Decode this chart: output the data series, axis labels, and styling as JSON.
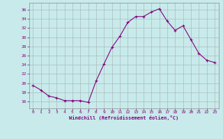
{
  "x": [
    0,
    1,
    2,
    3,
    4,
    5,
    6,
    7,
    8,
    9,
    10,
    11,
    12,
    13,
    14,
    15,
    16,
    17,
    18,
    19,
    20,
    21,
    22,
    23
  ],
  "y": [
    19.5,
    18.5,
    17.2,
    16.8,
    16.2,
    16.2,
    16.2,
    15.8,
    20.5,
    24.2,
    27.8,
    30.2,
    33.2,
    34.5,
    34.5,
    35.5,
    36.2,
    33.5,
    31.5,
    32.5,
    29.5,
    26.5,
    25.0,
    24.5
  ],
  "line_color": "#800080",
  "marker": "+",
  "marker_size": 3,
  "marker_lw": 0.8,
  "bg_color": "#c8eaea",
  "grid_color": "#aabbbb",
  "xlabel": "Windchill (Refroidissement éolien,°C)",
  "xlabel_color": "#800080",
  "tick_color": "#800080",
  "ylim": [
    14.5,
    37.5
  ],
  "xlim": [
    -0.5,
    23.5
  ],
  "yticks": [
    16,
    18,
    20,
    22,
    24,
    26,
    28,
    30,
    32,
    34,
    36
  ],
  "xticks": [
    0,
    1,
    2,
    3,
    4,
    5,
    6,
    7,
    8,
    9,
    10,
    11,
    12,
    13,
    14,
    15,
    16,
    17,
    18,
    19,
    20,
    21,
    22,
    23
  ]
}
